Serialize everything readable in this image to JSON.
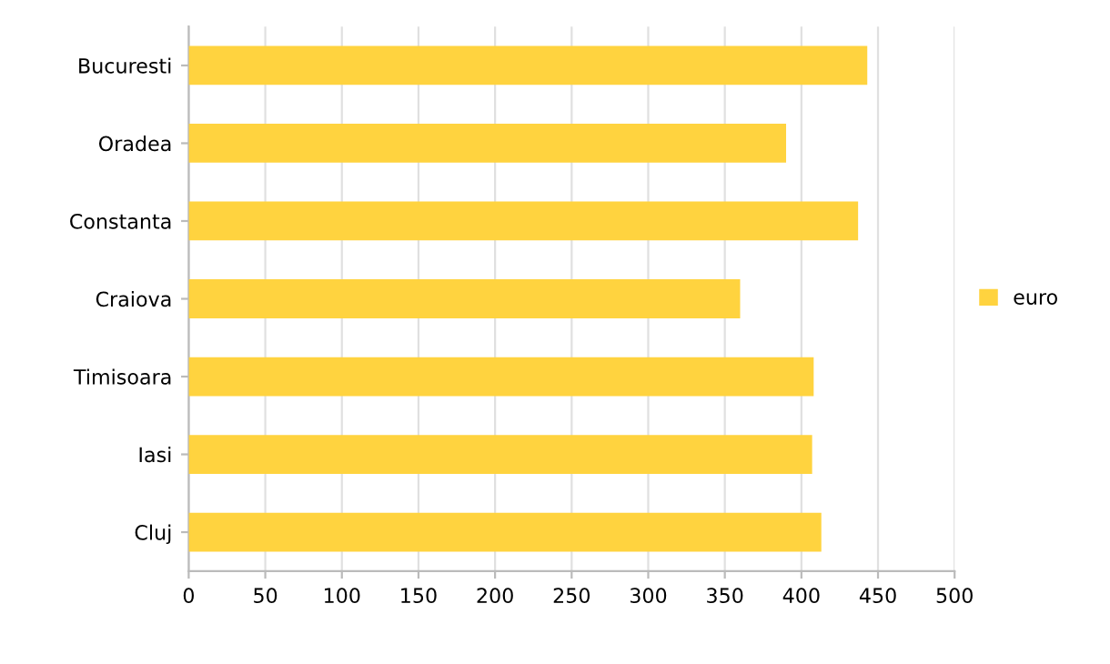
{
  "chart_data": {
    "type": "bar",
    "orientation": "horizontal",
    "categories": [
      "Bucuresti",
      "Oradea",
      "Constanta",
      "Craiova",
      "Timisoara",
      "Iasi",
      "Cluj"
    ],
    "series": [
      {
        "name": "euro",
        "color": "#ffd33f",
        "values": [
          443,
          390,
          437,
          360,
          408,
          407,
          413
        ]
      }
    ],
    "xlim": [
      0,
      500
    ],
    "xticks": [
      0,
      50,
      100,
      150,
      200,
      250,
      300,
      350,
      400,
      450,
      500
    ],
    "grid": "x",
    "legend": "right"
  }
}
